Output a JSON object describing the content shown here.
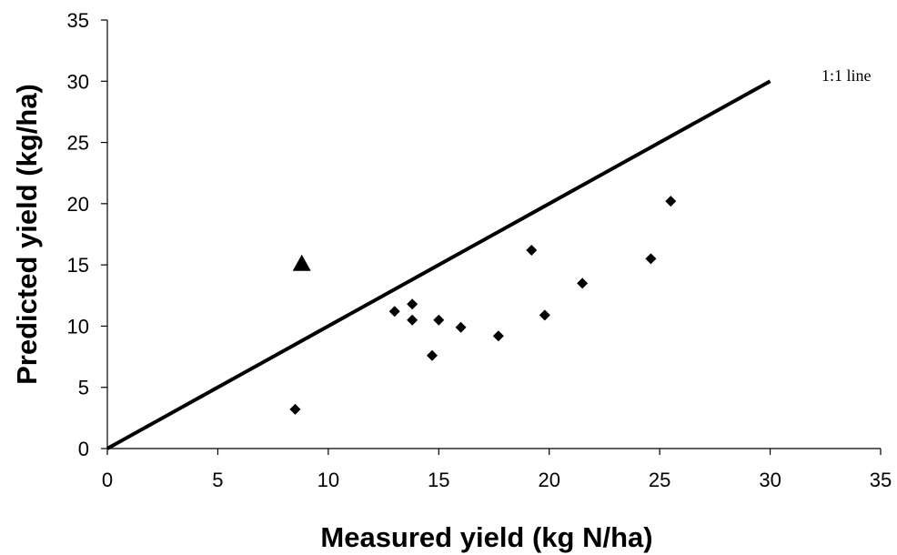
{
  "chart_data": {
    "type": "scatter",
    "xlabel": "Measured yield (kg N/ha)",
    "ylabel": "Predicted yield (kg/ha)",
    "xlim": [
      0,
      35
    ],
    "ylim": [
      0,
      35
    ],
    "x_ticks": [
      0,
      5,
      10,
      15,
      20,
      25,
      30,
      35
    ],
    "y_ticks": [
      0,
      5,
      10,
      15,
      20,
      25,
      30,
      35
    ],
    "x_tick_labels": [
      "0",
      "5",
      "10",
      "15",
      "20",
      "25",
      "30",
      "35"
    ],
    "y_tick_labels": [
      "0",
      "5",
      "10",
      "15",
      "20",
      "25",
      "30",
      "35"
    ],
    "grid": false,
    "reference_line": {
      "label": "1:1 line",
      "x": [
        0,
        30
      ],
      "y": [
        0,
        30
      ],
      "color": "#000000"
    },
    "series": [
      {
        "marker": "diamond",
        "color": "#000000",
        "points": [
          {
            "x": 8.5,
            "y": 3.2
          },
          {
            "x": 13.0,
            "y": 11.2
          },
          {
            "x": 13.8,
            "y": 11.8
          },
          {
            "x": 13.8,
            "y": 10.5
          },
          {
            "x": 14.7,
            "y": 7.6
          },
          {
            "x": 15.0,
            "y": 10.5
          },
          {
            "x": 16.0,
            "y": 9.9
          },
          {
            "x": 17.7,
            "y": 9.2
          },
          {
            "x": 19.2,
            "y": 16.2
          },
          {
            "x": 19.8,
            "y": 10.9
          },
          {
            "x": 21.5,
            "y": 13.5
          },
          {
            "x": 24.6,
            "y": 15.5
          },
          {
            "x": 25.5,
            "y": 20.2
          }
        ]
      },
      {
        "marker": "triangle",
        "color": "#000000",
        "points": [
          {
            "x": 8.8,
            "y": 15.1
          }
        ]
      }
    ]
  }
}
